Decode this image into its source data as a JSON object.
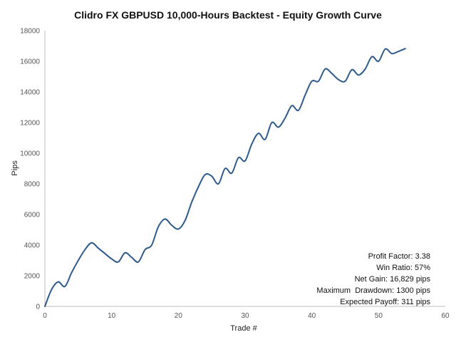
{
  "chart_data": {
    "type": "line",
    "title": "Clidro FX GBPUSD 10,000-Hours Backtest - Equity Growth Curve",
    "xlabel": "Trade #",
    "ylabel": "Pips",
    "xlim": [
      0,
      60
    ],
    "ylim": [
      0,
      18000
    ],
    "xticks": [
      0,
      10,
      20,
      30,
      40,
      50,
      60
    ],
    "yticks": [
      0,
      2000,
      4000,
      6000,
      8000,
      10000,
      12000,
      14000,
      16000,
      18000
    ],
    "grid": false,
    "line_color": "#2e5a8c",
    "axis_color": "#bfbfbf",
    "series": [
      {
        "x": [
          0,
          1,
          2,
          3,
          4,
          5,
          6,
          7,
          8,
          9,
          10,
          11,
          12,
          13,
          14,
          15,
          16,
          17,
          18,
          19,
          20,
          21,
          22,
          23,
          24,
          25,
          26,
          27,
          28,
          29,
          30,
          31,
          32,
          33,
          34,
          35,
          36,
          37,
          38,
          39,
          40,
          41,
          42,
          43,
          44,
          45,
          46,
          47,
          48,
          49,
          50,
          51,
          52,
          53,
          54
        ],
        "values": [
          0,
          1100,
          1600,
          1300,
          2200,
          3000,
          3700,
          4150,
          3800,
          3450,
          3100,
          2900,
          3500,
          3200,
          2900,
          3700,
          4000,
          5200,
          5700,
          5300,
          5050,
          5600,
          6800,
          7800,
          8600,
          8500,
          8000,
          9000,
          8700,
          9700,
          9500,
          10600,
          11300,
          10900,
          12000,
          11700,
          12300,
          13100,
          12800,
          13800,
          14700,
          14700,
          15500,
          15200,
          14800,
          14700,
          15450,
          15100,
          15500,
          16300,
          16000,
          16800,
          16500,
          16650,
          16829
        ]
      }
    ],
    "stats": [
      "Profit Factor: 3.38",
      "Win Ratio: 57%",
      "Net Gain: 16,829 pips",
      "Maximum  Drawdown: 1300 pips",
      "Expected Payoff: 311 pips"
    ]
  }
}
